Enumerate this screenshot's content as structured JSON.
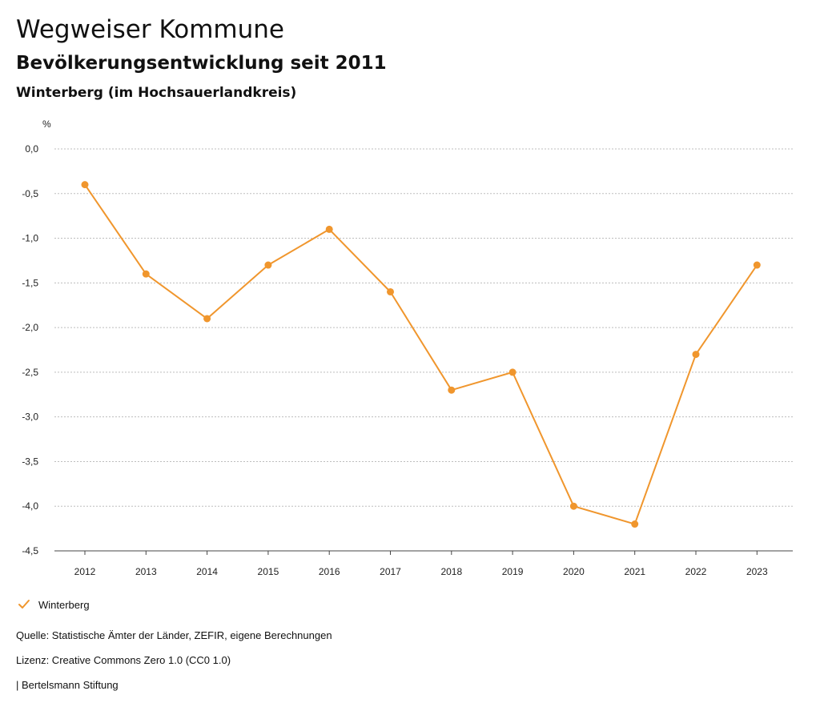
{
  "header": {
    "title": "Wegweiser Kommune",
    "subtitle": "Bevölkerungsentwicklung seit 2011",
    "region": "Winterberg (im Hochsauerlandkreis)"
  },
  "chart_data": {
    "type": "line",
    "unit": "%",
    "categories": [
      "2012",
      "2013",
      "2014",
      "2015",
      "2016",
      "2017",
      "2018",
      "2019",
      "2020",
      "2021",
      "2022",
      "2023"
    ],
    "series": [
      {
        "name": "Winterberg",
        "color": "#f0962d",
        "values": [
          -0.4,
          -1.4,
          -1.9,
          -1.3,
          -0.9,
          -1.6,
          -2.7,
          -2.5,
          -4.0,
          -4.2,
          -2.3,
          -1.3
        ]
      }
    ],
    "yticks": [
      "0,0",
      "-0,5",
      "-1,0",
      "-1,5",
      "-2,0",
      "-2,5",
      "-3,0",
      "-3,5",
      "-4,0",
      "-4,5"
    ],
    "ylim": [
      -4.5,
      0.0
    ],
    "grid": true,
    "legend_position": "bottom-left"
  },
  "legend": {
    "label": "Winterberg",
    "icon": "check-icon"
  },
  "footer": {
    "source": "Quelle: Statistische Ämter der Länder, ZEFIR, eigene Berechnungen",
    "license": "Lizenz: Creative Commons Zero 1.0 (CC0 1.0)",
    "org": "| Bertelsmann Stiftung"
  }
}
